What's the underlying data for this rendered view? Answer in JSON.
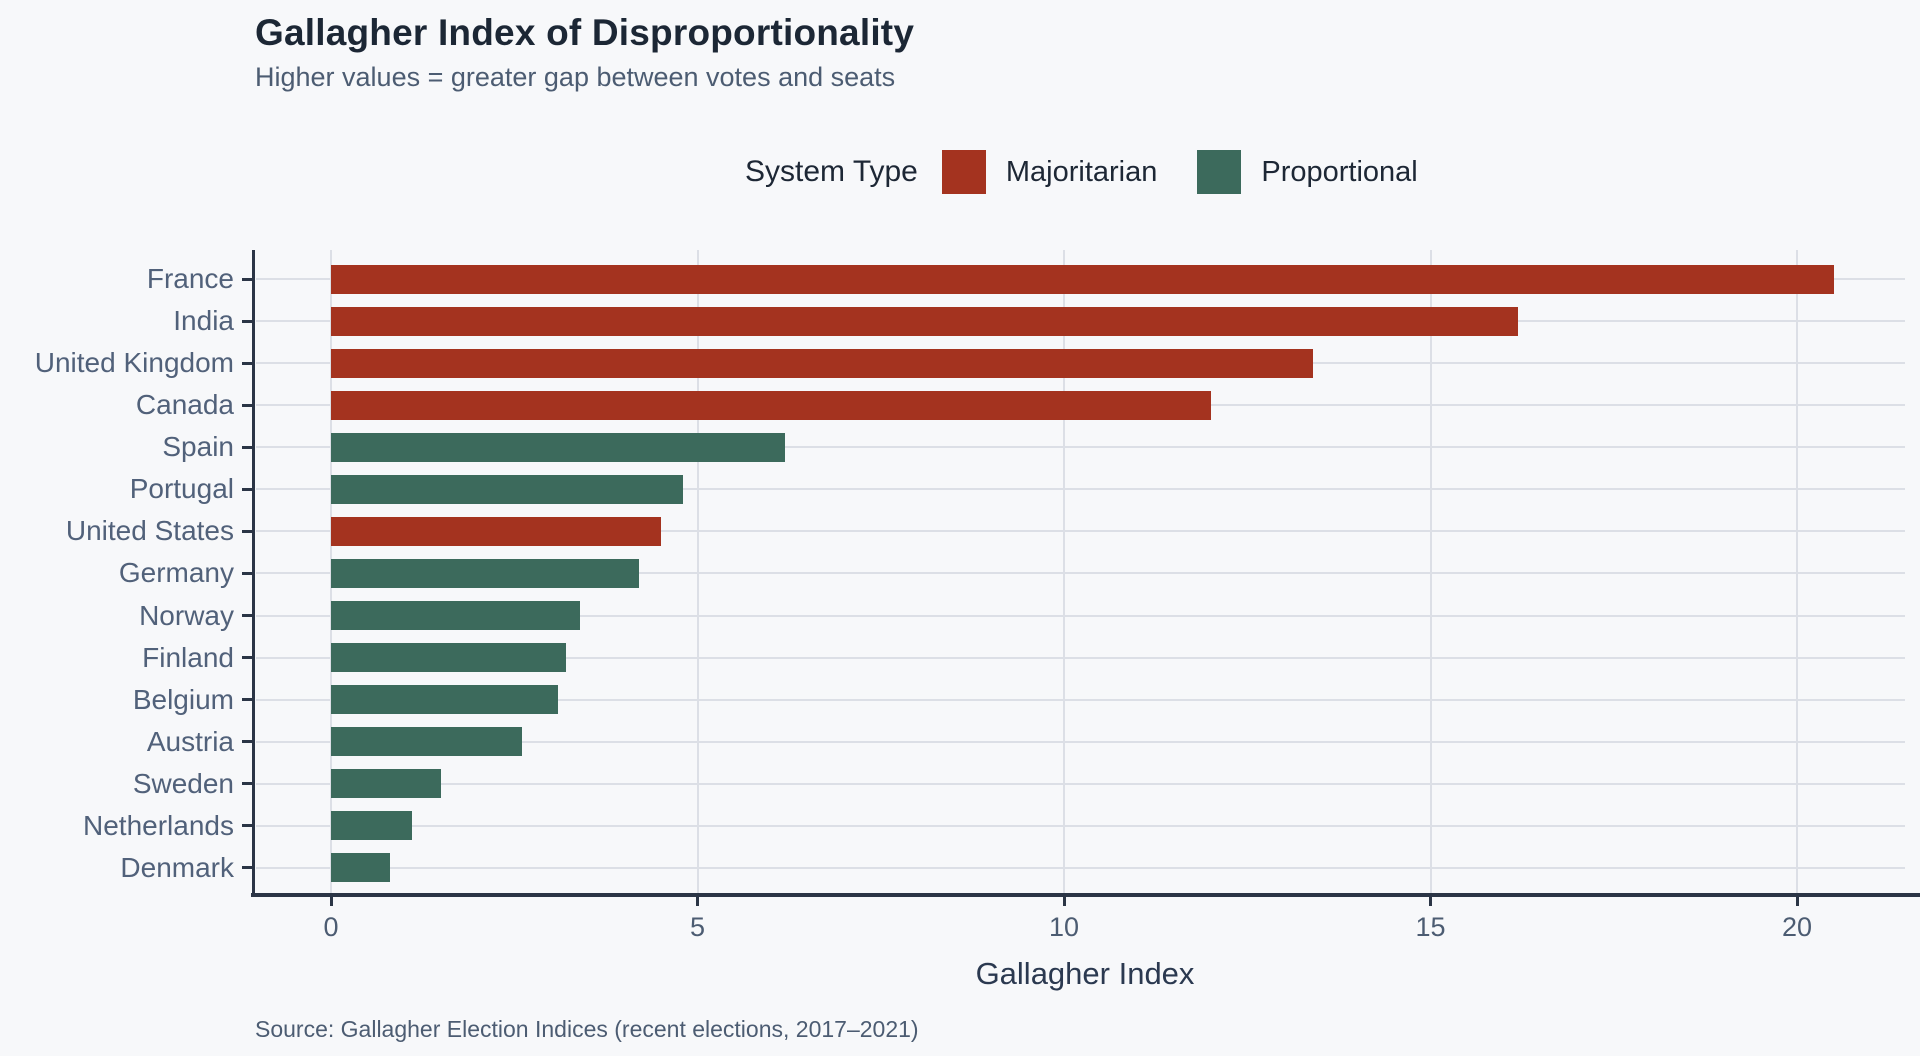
{
  "page": {
    "background_color": "#f7f8fa",
    "accent_red": "#a4331f",
    "accent_green": "#3c6a5c"
  },
  "header": {
    "title": "Gallagher Index of Disproportionality",
    "subtitle": "Higher values = greater gap between votes and seats"
  },
  "legend": {
    "title": "System Type",
    "items": [
      {
        "label": "Majoritarian",
        "color": "#a4331f"
      },
      {
        "label": "Proportional",
        "color": "#3c6a5c"
      }
    ]
  },
  "chart_data": {
    "type": "bar",
    "orientation": "horizontal",
    "title": "Gallagher Index of Disproportionality",
    "subtitle": "Higher values = greater gap between votes and seats",
    "xlabel": "Gallagher Index",
    "ylabel": "",
    "categories": [
      "France",
      "India",
      "United Kingdom",
      "Canada",
      "Spain",
      "Portugal",
      "United States",
      "Germany",
      "Norway",
      "Finland",
      "Belgium",
      "Austria",
      "Sweden",
      "Netherlands",
      "Denmark"
    ],
    "values": [
      20.5,
      16.2,
      13.4,
      12.0,
      6.2,
      4.8,
      4.5,
      4.2,
      3.4,
      3.2,
      3.1,
      2.6,
      1.5,
      1.1,
      0.8
    ],
    "series_group": [
      "Majoritarian",
      "Majoritarian",
      "Majoritarian",
      "Majoritarian",
      "Proportional",
      "Proportional",
      "Majoritarian",
      "Proportional",
      "Proportional",
      "Proportional",
      "Proportional",
      "Proportional",
      "Proportional",
      "Proportional",
      "Proportional"
    ],
    "group_colors": {
      "Majoritarian": "#a4331f",
      "Proportional": "#3c6a5c"
    },
    "x_ticks": [
      0,
      5,
      10,
      15,
      20
    ],
    "xlim": [
      0,
      21.6
    ],
    "grid": "major-x-and-y",
    "legend_position": "top"
  },
  "footer": {
    "source": "Source: Gallagher Election Indices (recent elections, 2017–2021)"
  }
}
